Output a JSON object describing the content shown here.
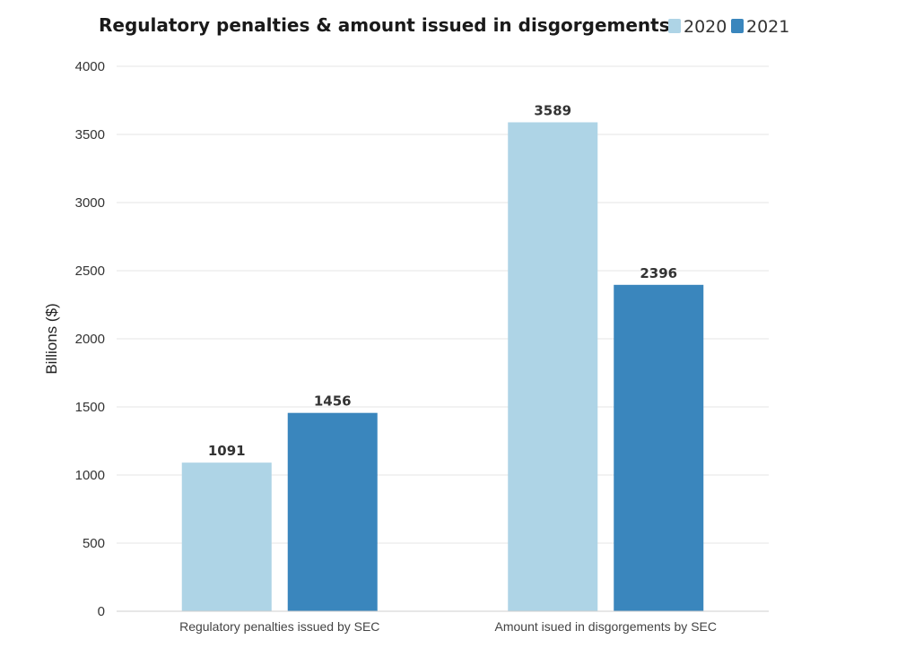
{
  "chart_data": {
    "type": "bar",
    "title": "Regulatory penalties & amount issued in disgorgements",
    "xlabel": "",
    "ylabel": "Billions ($)",
    "ylim": [
      0,
      4000
    ],
    "yticks": [
      0,
      500,
      1000,
      1500,
      2000,
      2500,
      3000,
      3500,
      4000
    ],
    "categories": [
      "Regulatory penalties issued by SEC",
      "Amount isued in disgorgements by SEC"
    ],
    "series": [
      {
        "name": "2020",
        "color": "#aed4e6",
        "values": [
          1091,
          3589
        ]
      },
      {
        "name": "2021",
        "color": "#3a86bd",
        "values": [
          1456,
          2396
        ]
      }
    ],
    "legend_position": "top-right",
    "grid": true
  }
}
